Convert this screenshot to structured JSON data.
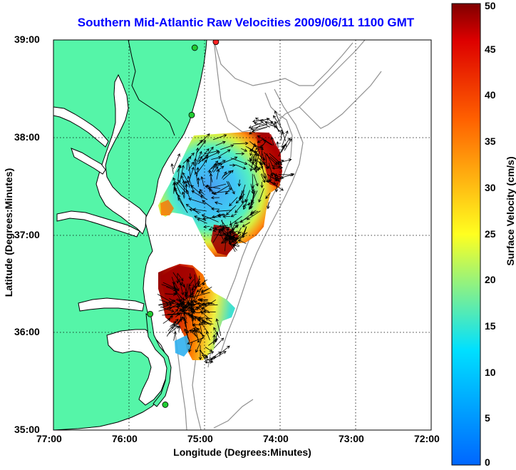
{
  "title": "Southern Mid-Atlantic Raw Velocities 2009/06/11 1100 GMT",
  "xlabel": "Longitude (Degrees:Minutes)",
  "ylabel": "Latitude (Degrees:Minutes)",
  "colorbar": {
    "label": "Surface Velocity (cm/s)",
    "min": 0,
    "max": 50,
    "ticks": [
      "0",
      "5",
      "10",
      "15",
      "20",
      "25",
      "30",
      "35",
      "40",
      "45",
      "50"
    ]
  },
  "map": {
    "lon_range": [
      -77,
      -72
    ],
    "lat_range": [
      35,
      39
    ],
    "x_ticks": [
      {
        "lon": -77,
        "label": "77:00"
      },
      {
        "lon": -76,
        "label": "76:00"
      },
      {
        "lon": -75,
        "label": "75:00"
      },
      {
        "lon": -74,
        "label": "74:00"
      },
      {
        "lon": -73,
        "label": "73:00"
      },
      {
        "lon": -72,
        "label": "72:00"
      }
    ],
    "y_ticks": [
      {
        "lat": 35,
        "label": "35:00"
      },
      {
        "lat": 36,
        "label": "36:00"
      },
      {
        "lat": 37,
        "label": "37:00"
      },
      {
        "lat": 38,
        "label": "38:00"
      },
      {
        "lat": 39,
        "label": "39:00"
      }
    ],
    "grid": "dotted",
    "colors": {
      "land": "#55f5a8",
      "coast": "#000000",
      "bathymetry": "#909090",
      "station": "#22cc33",
      "station_alert": "#ff2222"
    },
    "stations": [
      {
        "lon": -74.85,
        "lat": 38.98,
        "status": "alert"
      },
      {
        "lon": -75.13,
        "lat": 38.92,
        "status": "active"
      },
      {
        "lon": -75.17,
        "lat": 38.23,
        "status": "active"
      },
      {
        "lon": -75.72,
        "lat": 36.19,
        "status": "active"
      },
      {
        "lon": -75.52,
        "lat": 35.26,
        "status": "active"
      }
    ]
  }
}
